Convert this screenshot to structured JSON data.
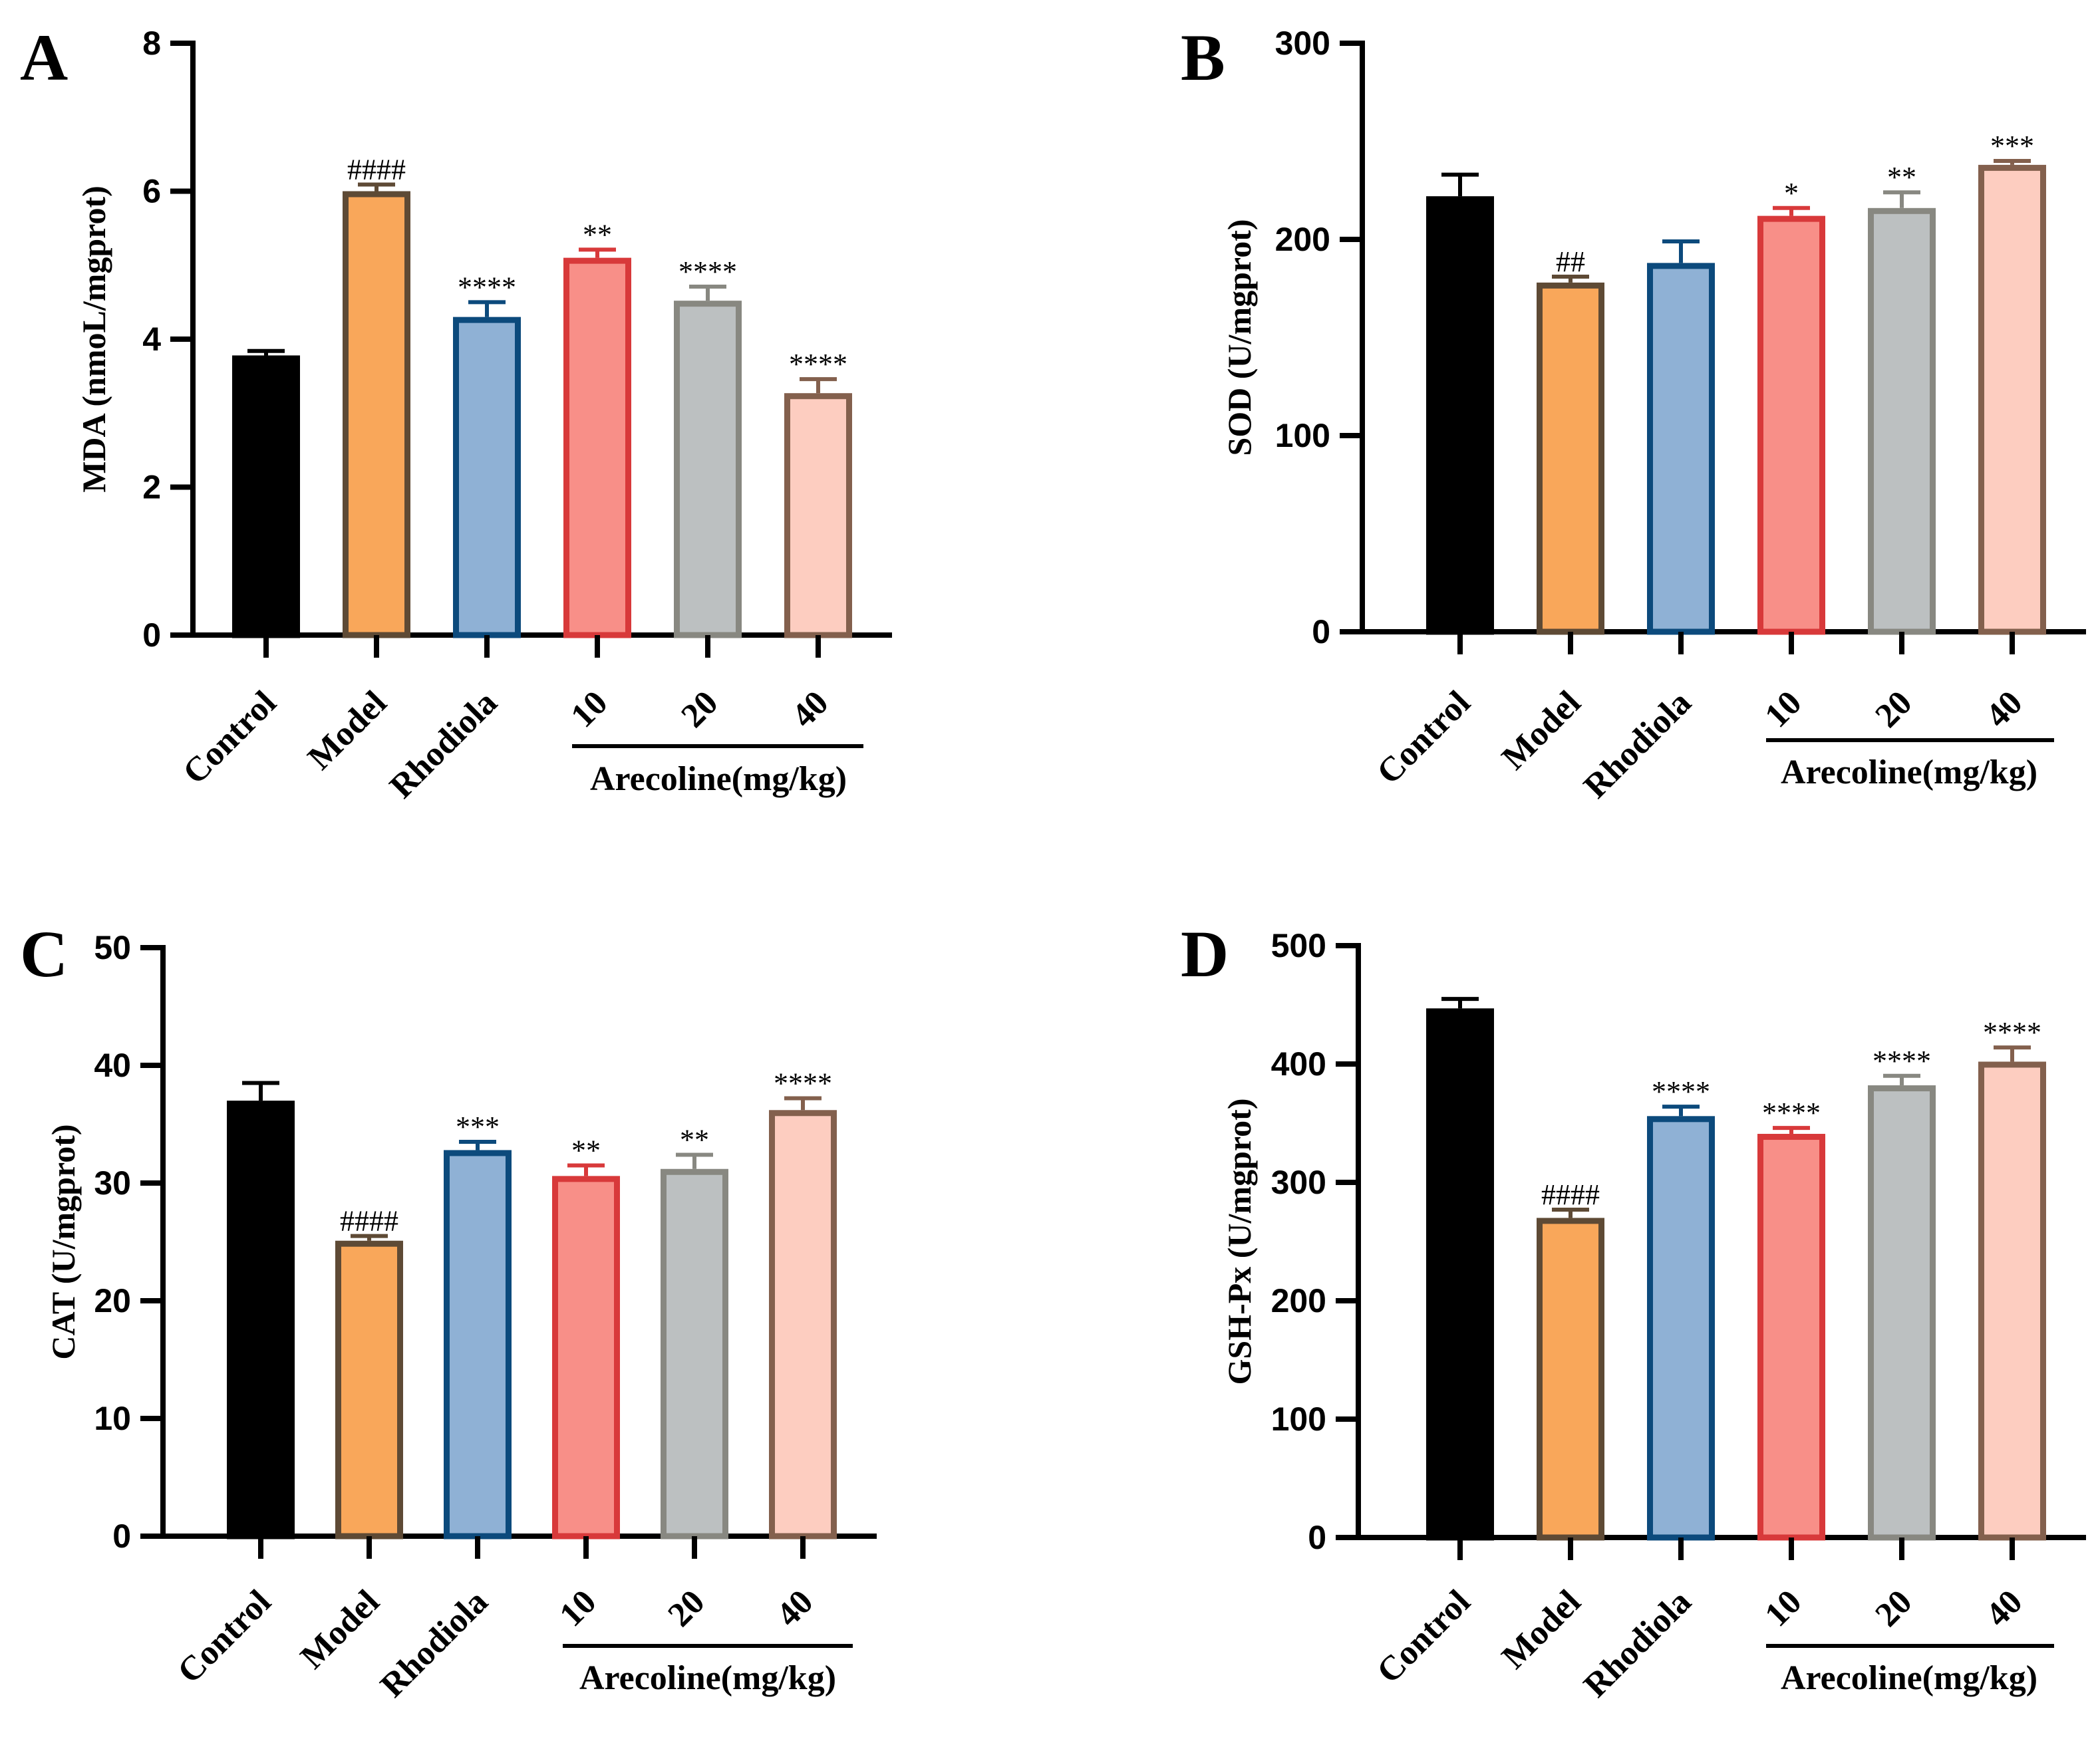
{
  "colors": {
    "fills": [
      "#000000",
      "#F9A75A",
      "#8FB1D5",
      "#F88F88",
      "#BCC0C1",
      "#FDCDC0"
    ],
    "edges": [
      "#000000",
      "#5E4A35",
      "#0C4A7C",
      "#D8393A",
      "#888881",
      "#83604D"
    ]
  },
  "chart_data": [
    {
      "type": "bar",
      "panel": "A",
      "ylabel": "MDA (nmoL/mgprot)",
      "ylim": [
        0,
        8
      ],
      "yticks": [
        "0",
        "2",
        "4",
        "6",
        "8"
      ],
      "categories": [
        "Control",
        "Model",
        "Rhodiola",
        "10",
        "20",
        "40"
      ],
      "group_label": "Arecoline(mg/kg)",
      "values": [
        3.78,
        6.0,
        4.3,
        5.1,
        4.52,
        3.27
      ],
      "errors": [
        0.06,
        0.09,
        0.2,
        0.11,
        0.19,
        0.19
      ],
      "significance": [
        "",
        "####",
        "****",
        "**",
        "****",
        "****"
      ]
    },
    {
      "type": "bar",
      "panel": "B",
      "ylabel": "SOD  (U/mgprot)",
      "ylim": [
        0,
        300
      ],
      "yticks": [
        "0",
        "100",
        "200",
        "300"
      ],
      "categories": [
        "Control",
        "Model",
        "Rhodiola",
        "10",
        "20",
        "40"
      ],
      "group_label": "Arecoline(mg/kg)",
      "values": [
        222,
        178,
        188,
        212,
        216,
        238
      ],
      "errors": [
        11,
        3,
        11,
        4,
        8,
        2
      ],
      "significance": [
        "",
        "##",
        "",
        "*",
        "**",
        "***"
      ]
    },
    {
      "type": "bar",
      "panel": "C",
      "ylabel": "CAT (U/mgprot)",
      "ylim": [
        0,
        50
      ],
      "yticks": [
        "0",
        "10",
        "20",
        "30",
        "40",
        "50"
      ],
      "categories": [
        "Control",
        "Model",
        "Rhodiola",
        "10",
        "20",
        "40"
      ],
      "group_label": "Arecoline(mg/kg)",
      "values": [
        37.0,
        25.1,
        32.8,
        30.6,
        31.2,
        36.2
      ],
      "errors": [
        1.5,
        0.4,
        0.7,
        0.9,
        1.2,
        1.0
      ],
      "significance": [
        "",
        "####",
        "***",
        "**",
        "**",
        "****"
      ]
    },
    {
      "type": "bar",
      "panel": "D",
      "ylabel": "GSH-Px (U/mgprot)",
      "ylim": [
        0,
        500
      ],
      "yticks": [
        "0",
        "100",
        "200",
        "300",
        "400",
        "500"
      ],
      "categories": [
        "Control",
        "Model",
        "Rhodiola",
        "10",
        "20",
        "40"
      ],
      "group_label": "Arecoline(mg/kg)",
      "values": [
        447,
        270,
        356,
        341,
        382,
        402
      ],
      "errors": [
        8,
        7,
        8,
        5,
        8,
        12
      ],
      "significance": [
        "",
        "####",
        "****",
        "****",
        "****",
        "****"
      ]
    }
  ]
}
